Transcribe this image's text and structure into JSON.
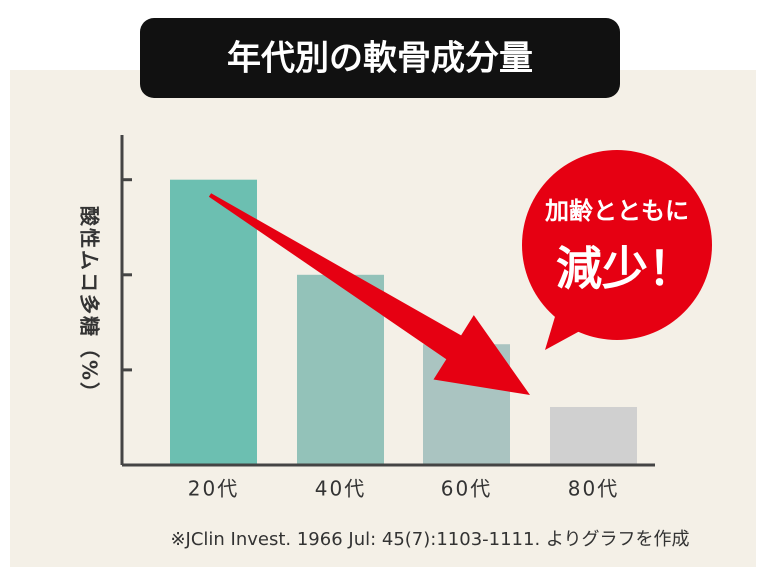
{
  "chart_data": {
    "type": "bar",
    "title": "年代別の軟骨成分量",
    "ylabel": "酸性ムコ多糖（%）",
    "categories": [
      "20代",
      "40代",
      "60代",
      "80代"
    ],
    "values": [
      3.0,
      2.0,
      1.27,
      0.61
    ],
    "colors": [
      "#6cbfb1",
      "#93c2b9",
      "#aac4c1",
      "#d0d0d0"
    ],
    "ylim": [
      0,
      3.47
    ],
    "yticks": [
      1,
      2,
      3
    ],
    "annotation": [
      "加齢とともに",
      "減少！"
    ],
    "source": "※JClin Invest. 1966 Jul: 45(7):1103-1111. よりグラフを作成"
  }
}
